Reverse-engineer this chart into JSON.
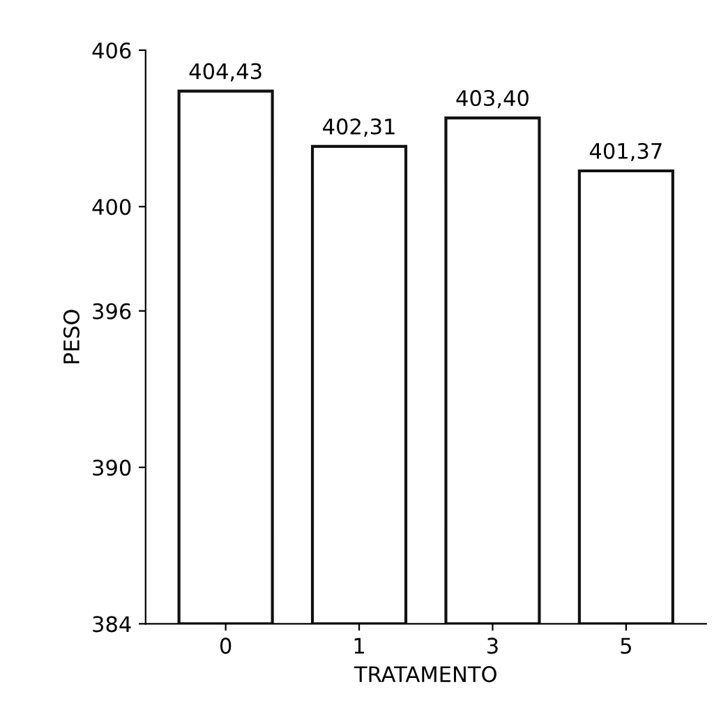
{
  "chart_data": {
    "type": "bar",
    "xlabel": "TRATAMENTO",
    "ylabel": "PESO",
    "categories": [
      "0",
      "1",
      "3",
      "5"
    ],
    "values": [
      404.43,
      402.31,
      403.4,
      401.37
    ],
    "value_labels": [
      "404,43",
      "402,31",
      "403,40",
      "401,37"
    ],
    "color": "#ffffff",
    "ylim": [
      384,
      406
    ],
    "yticks": [
      384,
      390,
      396,
      400,
      406
    ],
    "grid": false
  }
}
